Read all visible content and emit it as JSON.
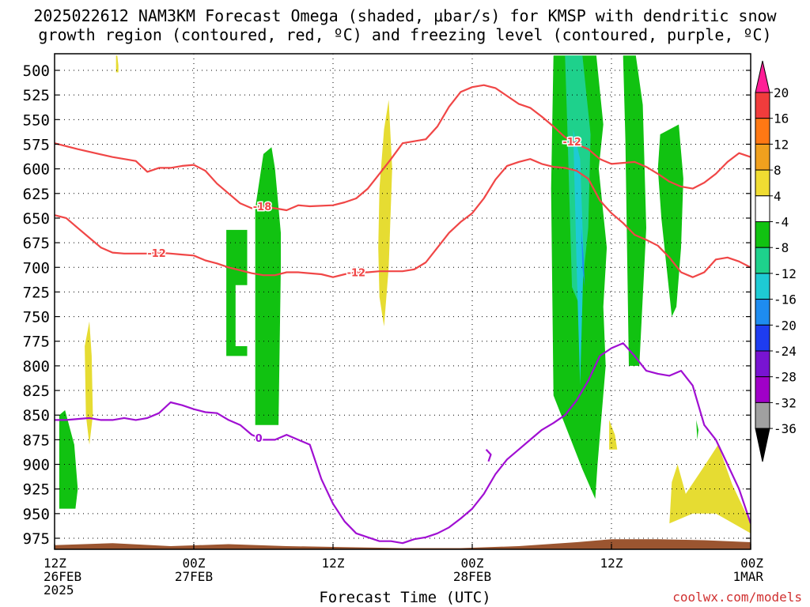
{
  "title": {
    "line1": "2025022612 NAM3KM Forecast Omega (shaded, μbar/s) for KMSP with dendritic snow",
    "line2": "growth region (contoured, red, ºC) and freezing level (contoured, purple, ºC)"
  },
  "credit": "coolwx.com/models",
  "chart_data": {
    "type": "heatmap",
    "title": "2025022612 NAM3KM Forecast Omega (shaded, μbar/s) for KMSP with dendritic snow growth region (contoured, red, ºC) and freezing level (contoured, purple, ºC)",
    "xlabel": "Forecast Time (UTC)",
    "ylabel": "",
    "x_ticks": [
      {
        "hour": 0,
        "lines": [
          "12Z",
          "26FEB",
          "2025"
        ]
      },
      {
        "hour": 12,
        "lines": [
          "00Z",
          "27FEB"
        ]
      },
      {
        "hour": 24,
        "lines": [
          "12Z"
        ]
      },
      {
        "hour": 36,
        "lines": [
          "00Z",
          "28FEB"
        ]
      },
      {
        "hour": 48,
        "lines": [
          "12Z"
        ]
      },
      {
        "hour": 60,
        "lines": [
          "00Z",
          "1MAR"
        ]
      }
    ],
    "xlim": [
      0,
      60
    ],
    "y_ticks": [
      500,
      525,
      550,
      575,
      600,
      625,
      650,
      675,
      700,
      725,
      750,
      775,
      800,
      825,
      850,
      875,
      900,
      925,
      950,
      975
    ],
    "ylim": [
      488,
      1000
    ],
    "grid": true,
    "colorbar": {
      "labels": [
        "20",
        "16",
        "12",
        "8",
        "4",
        "-4",
        "-8",
        "-12",
        "-16",
        "-20",
        "-24",
        "-28",
        "-32",
        "-36"
      ],
      "colors": [
        "#ff1e96",
        "#f03c3c",
        "#ff7814",
        "#f0a01e",
        "#f0dc32",
        "#ffffff",
        "#11c211",
        "#1ed18c",
        "#1ecad4",
        "#1e8cf0",
        "#1e3cf0",
        "#7814d2",
        "#a000c8",
        "#a0a0a0",
        "#000000"
      ]
    },
    "omega_regions": [
      {
        "value": 6,
        "hours": [
          5.3,
          5.4,
          5.5,
          5.5,
          5.3
        ],
        "hpa": [
          485,
          485,
          495,
          502,
          502
        ]
      },
      {
        "value": -6,
        "hours": [
          0.4,
          0.9,
          1.7,
          2.0,
          1.8,
          0.4
        ],
        "hpa": [
          850,
          845,
          880,
          925,
          945,
          945
        ]
      },
      {
        "value": 6,
        "hours": [
          2.6,
          3.0,
          3.2,
          3.3,
          3.0,
          2.7
        ],
        "hpa": [
          780,
          755,
          790,
          850,
          880,
          850
        ]
      },
      {
        "value": -6,
        "hours": [
          14.8,
          16.6,
          16.6,
          15.6,
          15.6,
          16.6,
          16.6,
          14.8
        ],
        "hpa": [
          662,
          662,
          718,
          718,
          780,
          780,
          790,
          790
        ]
      },
      {
        "value": -6,
        "hours": [
          17.3,
          18.0,
          18.7,
          19.0,
          19.5,
          19.5,
          19.3,
          17.3,
          17.3
        ],
        "hpa": [
          640,
          585,
          578,
          600,
          665,
          700,
          860,
          860,
          640
        ]
      },
      {
        "value": 4,
        "hours": [
          28.0,
          28.4,
          28.8,
          29.1,
          28.8,
          28.4,
          28.0,
          27.9
        ],
        "hpa": [
          620,
          560,
          530,
          600,
          700,
          760,
          730,
          680
        ]
      },
      {
        "value": -6,
        "hours": [
          43.0,
          46.7,
          47.3,
          46.9,
          47.6,
          47.3,
          47.5,
          46.8,
          46.6,
          45.5,
          44.5,
          43.0,
          42.8
        ],
        "hpa": [
          485,
          485,
          555,
          600,
          680,
          740,
          800,
          900,
          935,
          905,
          875,
          830,
          620
        ]
      },
      {
        "value": -6,
        "hours": [
          49.0,
          50.1,
          50.7,
          51.0,
          50.4,
          49.5,
          49.2
        ],
        "hpa": [
          485,
          485,
          535,
          660,
          800,
          800,
          570
        ]
      },
      {
        "value": -6,
        "hours": [
          52.2,
          53.8,
          54.2,
          54.0,
          53.6,
          53.2,
          52.3,
          52.0
        ],
        "hpa": [
          565,
          555,
          610,
          680,
          740,
          750,
          650,
          600
        ]
      },
      {
        "value": -10,
        "hours": [
          44.0,
          45.5,
          46.2,
          46.0,
          45.3,
          44.6,
          44.2
        ],
        "hpa": [
          485,
          485,
          565,
          660,
          740,
          720,
          560
        ]
      },
      {
        "value": -14,
        "hours": [
          44.7,
          45.3,
          45.6,
          45.3,
          45.0
        ],
        "hpa": [
          560,
          590,
          690,
          820,
          700
        ]
      },
      {
        "value": -18,
        "hours": [
          45.4,
          45.6,
          45.7,
          45.5
        ],
        "hpa": [
          660,
          690,
          720,
          700
        ]
      },
      {
        "value": 6,
        "hours": [
          47.8,
          48.3,
          48.5,
          47.8
        ],
        "hpa": [
          855,
          870,
          885,
          885
        ]
      },
      {
        "value": 6,
        "hours": [
          53.2,
          53.7,
          54.4,
          56.1,
          57.2,
          58.4,
          60.0,
          60.0,
          57.0,
          55.0,
          53.0
        ],
        "hpa": [
          918,
          900,
          930,
          900,
          880,
          920,
          960,
          970,
          950,
          950,
          960
        ]
      },
      {
        "value": -6,
        "hours": [
          55.3,
          55.5,
          55.4
        ],
        "hpa": [
          855,
          865,
          875
        ]
      }
    ],
    "contours": [
      {
        "label": "-18",
        "color": "#f04646",
        "points": [
          [
            0,
            574
          ],
          [
            2,
            580
          ],
          [
            5,
            588
          ],
          [
            7,
            592
          ],
          [
            8,
            603
          ],
          [
            9,
            599
          ],
          [
            10,
            599
          ],
          [
            11,
            597
          ],
          [
            12,
            596
          ],
          [
            13,
            602
          ],
          [
            14,
            615
          ],
          [
            15,
            625
          ],
          [
            16,
            635
          ],
          [
            17,
            640
          ],
          [
            18,
            638
          ],
          [
            20,
            642
          ],
          [
            21,
            637
          ],
          [
            22,
            638
          ],
          [
            24,
            637
          ],
          [
            25,
            634
          ],
          [
            26,
            630
          ],
          [
            27,
            620
          ],
          [
            28,
            605
          ],
          [
            29,
            590
          ],
          [
            30,
            574
          ],
          [
            32,
            570
          ],
          [
            33,
            557
          ],
          [
            34,
            537
          ],
          [
            35,
            522
          ],
          [
            36,
            517
          ],
          [
            37,
            515
          ],
          [
            38,
            518
          ],
          [
            39,
            526
          ],
          [
            40,
            534
          ],
          [
            41,
            538
          ],
          [
            42,
            547
          ],
          [
            43,
            557
          ],
          [
            44,
            568
          ],
          [
            45,
            575
          ],
          [
            46,
            580
          ],
          [
            47,
            590
          ],
          [
            48,
            595
          ],
          [
            50,
            593
          ],
          [
            51,
            598
          ],
          [
            52,
            605
          ],
          [
            53,
            613
          ],
          [
            54,
            618
          ],
          [
            55,
            620
          ],
          [
            56,
            614
          ],
          [
            57,
            605
          ],
          [
            58,
            593
          ],
          [
            59,
            584
          ],
          [
            60,
            588
          ]
        ]
      },
      {
        "label": "-12",
        "color": "#f04646",
        "points": [
          [
            0,
            647
          ],
          [
            1,
            650
          ],
          [
            2,
            660
          ],
          [
            3,
            670
          ],
          [
            4,
            680
          ],
          [
            5,
            685
          ],
          [
            6,
            686
          ],
          [
            8,
            686
          ],
          [
            9,
            685
          ],
          [
            10,
            686
          ],
          [
            11,
            687
          ],
          [
            12,
            688
          ],
          [
            13,
            693
          ],
          [
            14,
            696
          ],
          [
            15,
            700
          ],
          [
            16,
            703
          ],
          [
            17,
            706
          ],
          [
            18,
            708
          ],
          [
            19,
            708
          ],
          [
            20,
            705
          ],
          [
            21,
            705
          ],
          [
            23,
            707
          ],
          [
            24,
            710
          ],
          [
            25,
            707
          ],
          [
            26,
            705
          ],
          [
            27,
            705
          ],
          [
            28,
            704
          ],
          [
            30,
            704
          ],
          [
            31,
            702
          ],
          [
            32,
            695
          ],
          [
            33,
            680
          ],
          [
            34,
            665
          ],
          [
            35,
            654
          ],
          [
            36,
            645
          ],
          [
            37,
            630
          ],
          [
            38,
            611
          ],
          [
            39,
            597
          ],
          [
            40,
            593
          ],
          [
            41,
            590
          ],
          [
            42,
            595
          ],
          [
            43,
            598
          ],
          [
            44,
            599
          ],
          [
            45,
            602
          ],
          [
            46,
            610
          ],
          [
            47,
            632
          ],
          [
            48,
            645
          ],
          [
            49,
            655
          ],
          [
            50,
            667
          ],
          [
            51,
            672
          ],
          [
            52,
            678
          ],
          [
            53,
            690
          ],
          [
            54,
            705
          ],
          [
            55,
            710
          ],
          [
            56,
            705
          ],
          [
            57,
            692
          ],
          [
            58,
            690
          ],
          [
            59,
            694
          ],
          [
            60,
            700
          ]
        ]
      },
      {
        "label": "0",
        "color": "#a00fd2",
        "points": [
          [
            0,
            855
          ],
          [
            1,
            855
          ],
          [
            3,
            853
          ],
          [
            4,
            855
          ],
          [
            5,
            855
          ],
          [
            6,
            853
          ],
          [
            7,
            855
          ],
          [
            8,
            853
          ],
          [
            9,
            848
          ],
          [
            10,
            837
          ],
          [
            11,
            840
          ],
          [
            12,
            844
          ],
          [
            13,
            847
          ],
          [
            14,
            848
          ],
          [
            15,
            855
          ],
          [
            16,
            860
          ],
          [
            17,
            870
          ],
          [
            18,
            875
          ],
          [
            19,
            875
          ],
          [
            20,
            870
          ],
          [
            21,
            875
          ],
          [
            22,
            880
          ],
          [
            23,
            915
          ],
          [
            24,
            940
          ],
          [
            25,
            958
          ],
          [
            26,
            970
          ],
          [
            27,
            974
          ],
          [
            28,
            978
          ],
          [
            29,
            978
          ],
          [
            30,
            980
          ],
          [
            31,
            976
          ],
          [
            32,
            974
          ],
          [
            33,
            970
          ],
          [
            34,
            964
          ],
          [
            35,
            955
          ],
          [
            36,
            945
          ],
          [
            37,
            930
          ],
          [
            38,
            910
          ],
          [
            39,
            895
          ],
          [
            40,
            885
          ],
          [
            41,
            875
          ],
          [
            42,
            865
          ],
          [
            43,
            858
          ],
          [
            44,
            850
          ],
          [
            45,
            835
          ],
          [
            46,
            815
          ],
          [
            47,
            790
          ],
          [
            48,
            782
          ],
          [
            49,
            777
          ],
          [
            50,
            790
          ],
          [
            51,
            805
          ],
          [
            52,
            808
          ],
          [
            53,
            810
          ],
          [
            54,
            805
          ],
          [
            55,
            820
          ],
          [
            56,
            860
          ],
          [
            57,
            875
          ],
          [
            58,
            900
          ],
          [
            59,
            925
          ],
          [
            60,
            960
          ]
        ]
      },
      {
        "label": "",
        "color": "#a00fd2",
        "points": [
          [
            37.2,
            885
          ],
          [
            37.6,
            890
          ],
          [
            37.4,
            897
          ]
        ]
      }
    ]
  }
}
